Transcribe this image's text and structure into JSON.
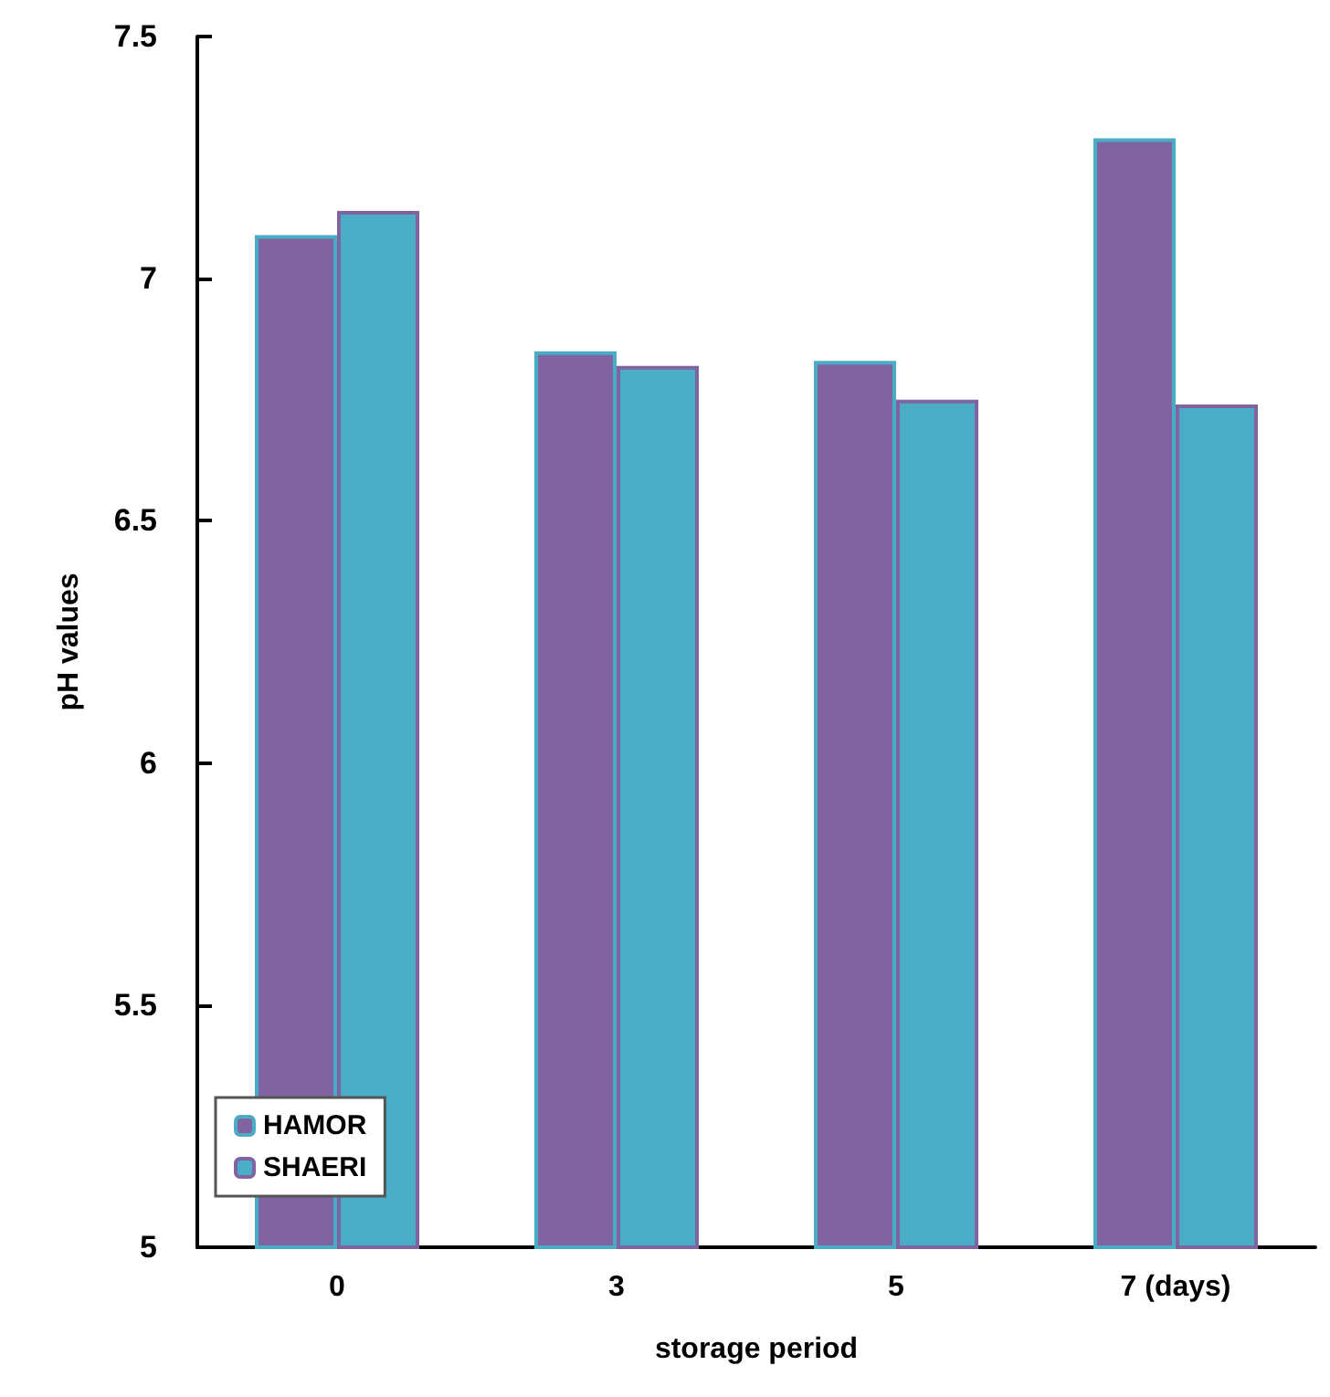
{
  "chart_data": {
    "type": "bar",
    "xlabel": "storage period",
    "ylabel": "pH values",
    "categories": [
      "0",
      "3",
      "5",
      "7 (days)"
    ],
    "series": [
      {
        "name": "HAMOR",
        "color": "#8064a2",
        "values": [
          7.09,
          6.85,
          6.83,
          7.29
        ]
      },
      {
        "name": "SHAERI",
        "color": "#4bacc6",
        "values": [
          7.14,
          6.82,
          6.75,
          6.74
        ]
      }
    ],
    "ylim": [
      5,
      7.5
    ],
    "yticks": [
      5,
      5.5,
      6,
      6.5,
      7,
      7.5
    ],
    "grid": false,
    "legend": "bottom left"
  }
}
